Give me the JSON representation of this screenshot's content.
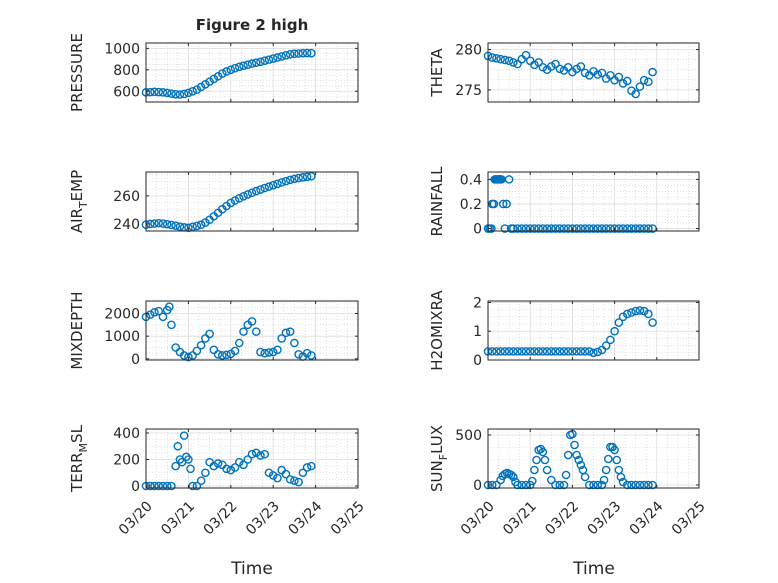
{
  "figure": {
    "title": "Figure 2 high",
    "xlabel": "Time"
  },
  "chart_data": [
    {
      "type": "scatter",
      "id": "pressure",
      "title": "Figure 2 high",
      "ylabel": "PRESSURE",
      "ylabel_sub": "",
      "ylabel_suffix": "",
      "xlim": [
        0,
        5
      ],
      "ylim": [
        500,
        1050
      ],
      "yticks": [
        600,
        800,
        1000
      ],
      "ytick_labels": [
        "600",
        "800",
        "1000"
      ],
      "xticks": [
        0,
        1,
        2,
        3,
        4,
        5
      ],
      "xtick_labels": [],
      "grid": true,
      "x": [
        0,
        0.1,
        0.2,
        0.3,
        0.4,
        0.5,
        0.6,
        0.7,
        0.8,
        0.9,
        1,
        1.1,
        1.2,
        1.3,
        1.4,
        1.5,
        1.6,
        1.7,
        1.8,
        1.9,
        2,
        2.1,
        2.2,
        2.3,
        2.4,
        2.5,
        2.6,
        2.7,
        2.8,
        2.9,
        3,
        3.1,
        3.2,
        3.3,
        3.4,
        3.5,
        3.6,
        3.7,
        3.8,
        3.9
      ],
      "y": [
        590,
        592,
        595,
        593,
        590,
        585,
        578,
        572,
        570,
        575,
        585,
        600,
        615,
        640,
        665,
        690,
        715,
        740,
        765,
        785,
        800,
        815,
        828,
        838,
        848,
        858,
        866,
        875,
        885,
        895,
        905,
        915,
        925,
        935,
        945,
        950,
        952,
        955,
        956,
        955
      ]
    },
    {
      "type": "scatter",
      "id": "theta",
      "title": "",
      "ylabel": "THETA",
      "ylabel_sub": "",
      "ylabel_suffix": "",
      "xlim": [
        0,
        5
      ],
      "ylim": [
        273.5,
        280.8
      ],
      "yticks": [
        275,
        280
      ],
      "ytick_labels": [
        "275",
        "280"
      ],
      "xticks": [
        0,
        1,
        2,
        3,
        4,
        5
      ],
      "xtick_labels": [],
      "grid": true,
      "x": [
        0,
        0.1,
        0.2,
        0.3,
        0.4,
        0.5,
        0.6,
        0.7,
        0.8,
        0.9,
        1,
        1.1,
        1.2,
        1.3,
        1.4,
        1.5,
        1.6,
        1.7,
        1.8,
        1.9,
        2,
        2.1,
        2.2,
        2.3,
        2.4,
        2.5,
        2.6,
        2.7,
        2.8,
        2.9,
        3,
        3.1,
        3.2,
        3.3,
        3.4,
        3.5,
        3.6,
        3.7,
        3.8,
        3.9
      ],
      "y": [
        279.2,
        279,
        278.9,
        278.8,
        278.7,
        278.6,
        278.4,
        278.2,
        278.8,
        279.3,
        278.6,
        278.1,
        278.4,
        277.8,
        277.5,
        277.9,
        278.2,
        277.6,
        277.4,
        277.8,
        277.2,
        277.6,
        277.9,
        277.1,
        276.8,
        277.3,
        276.9,
        277.1,
        276.4,
        276.8,
        276.2,
        276.6,
        275.8,
        276.1,
        274.9,
        274.5,
        275.4,
        276.2,
        276.0,
        277.2
      ]
    },
    {
      "type": "scatter",
      "id": "air-temp",
      "title": "",
      "ylabel": "AIR",
      "ylabel_sub": "T",
      "ylabel_suffix": "EMP",
      "xlim": [
        0,
        5
      ],
      "ylim": [
        235,
        277
      ],
      "yticks": [
        240,
        260
      ],
      "ytick_labels": [
        "240",
        "260"
      ],
      "xticks": [
        0,
        1,
        2,
        3,
        4,
        5
      ],
      "xtick_labels": [],
      "grid": true,
      "x": [
        0,
        0.1,
        0.2,
        0.3,
        0.4,
        0.5,
        0.6,
        0.7,
        0.8,
        0.9,
        1,
        1.1,
        1.2,
        1.3,
        1.4,
        1.5,
        1.6,
        1.7,
        1.8,
        1.9,
        2,
        2.1,
        2.2,
        2.3,
        2.4,
        2.5,
        2.6,
        2.7,
        2.8,
        2.9,
        3,
        3.1,
        3.2,
        3.3,
        3.4,
        3.5,
        3.6,
        3.7,
        3.8,
        3.9
      ],
      "y": [
        239.5,
        240,
        240.3,
        240.6,
        240.3,
        239.8,
        239.3,
        238.8,
        238.1,
        237.6,
        237.3,
        238,
        238.6,
        239.5,
        241,
        243,
        245.5,
        248,
        250.5,
        252.8,
        255,
        256.7,
        258.3,
        259.7,
        261,
        262.2,
        263.4,
        264.5,
        265.6,
        266.6,
        267.6,
        268.6,
        269.6,
        270.5,
        271.4,
        272.1,
        272.7,
        273.2,
        273.6,
        274
      ]
    },
    {
      "type": "scatter",
      "id": "rainfall",
      "title": "",
      "ylabel": "RAINFALL",
      "ylabel_sub": "",
      "ylabel_suffix": "",
      "xlim": [
        0,
        5
      ],
      "ylim": [
        -0.02,
        0.46
      ],
      "yticks": [
        0,
        0.2,
        0.4
      ],
      "ytick_labels": [
        "0",
        "0.2",
        "0.4"
      ],
      "xticks": [
        0,
        1,
        2,
        3,
        4,
        5
      ],
      "xtick_labels": [],
      "grid": true,
      "x": [
        0,
        0.04,
        0.08,
        0.1,
        0.14,
        0.16,
        0.18,
        0.2,
        0.22,
        0.24,
        0.26,
        0.28,
        0.3,
        0.32,
        0.36,
        0.4,
        0.44,
        0.5,
        0.55,
        0.6,
        0.7,
        0.8,
        0.9,
        1,
        1.1,
        1.2,
        1.3,
        1.4,
        1.5,
        1.6,
        1.7,
        1.8,
        1.9,
        2,
        2.1,
        2.2,
        2.3,
        2.4,
        2.5,
        2.6,
        2.7,
        2.8,
        2.9,
        3,
        3.1,
        3.2,
        3.3,
        3.4,
        3.5,
        3.6,
        3.7,
        3.8,
        3.9
      ],
      "y": [
        0,
        0,
        0,
        0.2,
        0.2,
        0.4,
        0.4,
        0.4,
        0.4,
        0.4,
        0.4,
        0.4,
        0.4,
        0.4,
        0.2,
        0,
        0.2,
        0.4,
        0,
        0,
        0,
        0,
        0,
        0,
        0,
        0,
        0,
        0,
        0,
        0,
        0,
        0,
        0,
        0,
        0,
        0,
        0,
        0,
        0,
        0,
        0,
        0,
        0,
        0,
        0,
        0,
        0,
        0,
        0,
        0,
        0,
        0,
        0
      ]
    },
    {
      "type": "scatter",
      "id": "mixdepth",
      "title": "",
      "ylabel": "MIXDEPTH",
      "ylabel_sub": "",
      "ylabel_suffix": "",
      "xlim": [
        0,
        5
      ],
      "ylim": [
        -50,
        2550
      ],
      "yticks": [
        0,
        1000,
        2000
      ],
      "ytick_labels": [
        "0",
        "1000",
        "2000"
      ],
      "xticks": [
        0,
        1,
        2,
        3,
        4,
        5
      ],
      "xtick_labels": [],
      "grid": true,
      "x": [
        0,
        0.1,
        0.2,
        0.3,
        0.4,
        0.5,
        0.55,
        0.6,
        0.7,
        0.8,
        0.9,
        1,
        1.1,
        1.2,
        1.3,
        1.4,
        1.5,
        1.6,
        1.7,
        1.8,
        1.9,
        2,
        2.1,
        2.2,
        2.3,
        2.4,
        2.5,
        2.6,
        2.7,
        2.8,
        2.9,
        3,
        3.1,
        3.2,
        3.3,
        3.4,
        3.5,
        3.6,
        3.7,
        3.8,
        3.9
      ],
      "y": [
        1850,
        1950,
        2050,
        2100,
        1850,
        2150,
        2300,
        1500,
        500,
        300,
        150,
        80,
        150,
        350,
        600,
        900,
        1100,
        400,
        200,
        150,
        180,
        220,
        350,
        700,
        1200,
        1500,
        1650,
        1200,
        300,
        250,
        280,
        300,
        400,
        900,
        1150,
        1200,
        700,
        200,
        100,
        250,
        150
      ]
    },
    {
      "type": "scatter",
      "id": "h2omixra",
      "title": "",
      "ylabel": "H2OMIXRA",
      "ylabel_sub": "",
      "ylabel_suffix": "",
      "xlim": [
        0,
        5
      ],
      "ylim": [
        0,
        2.05
      ],
      "yticks": [
        0,
        1,
        2
      ],
      "ytick_labels": [
        "0",
        "1",
        "2"
      ],
      "xticks": [
        0,
        1,
        2,
        3,
        4,
        5
      ],
      "xtick_labels": [],
      "grid": true,
      "x": [
        0,
        0.1,
        0.2,
        0.3,
        0.4,
        0.5,
        0.6,
        0.7,
        0.8,
        0.9,
        1,
        1.1,
        1.2,
        1.3,
        1.4,
        1.5,
        1.6,
        1.7,
        1.8,
        1.9,
        2,
        2.1,
        2.2,
        2.3,
        2.4,
        2.5,
        2.6,
        2.7,
        2.8,
        2.9,
        3,
        3.1,
        3.2,
        3.3,
        3.4,
        3.5,
        3.6,
        3.7,
        3.8,
        3.9
      ],
      "y": [
        0.3,
        0.3,
        0.3,
        0.3,
        0.3,
        0.3,
        0.3,
        0.3,
        0.3,
        0.3,
        0.3,
        0.3,
        0.3,
        0.3,
        0.3,
        0.3,
        0.3,
        0.3,
        0.3,
        0.3,
        0.3,
        0.3,
        0.3,
        0.3,
        0.3,
        0.25,
        0.28,
        0.35,
        0.5,
        0.7,
        1.0,
        1.3,
        1.5,
        1.6,
        1.65,
        1.7,
        1.72,
        1.7,
        1.6,
        1.3
      ]
    },
    {
      "type": "scatter",
      "id": "terr-msl",
      "title": "",
      "ylabel": "TERR",
      "ylabel_sub": "M",
      "ylabel_suffix": "SL",
      "xlim": [
        0,
        5
      ],
      "ylim": [
        -15,
        430
      ],
      "yticks": [
        0,
        200,
        400
      ],
      "ytick_labels": [
        "0",
        "200",
        "400"
      ],
      "xticks": [
        0,
        1,
        2,
        3,
        4,
        5
      ],
      "xtick_labels": [
        "03/20",
        "03/21",
        "03/22",
        "03/23",
        "03/24",
        "03/25"
      ],
      "grid": true,
      "x": [
        0,
        0.1,
        0.2,
        0.3,
        0.4,
        0.5,
        0.6,
        0.7,
        0.75,
        0.8,
        0.85,
        0.9,
        0.95,
        1,
        1.05,
        1.1,
        1.2,
        1.3,
        1.4,
        1.5,
        1.6,
        1.7,
        1.8,
        1.9,
        2,
        2.1,
        2.2,
        2.3,
        2.4,
        2.5,
        2.6,
        2.7,
        2.8,
        2.9,
        3,
        3.1,
        3.2,
        3.3,
        3.4,
        3.5,
        3.6,
        3.7,
        3.8,
        3.9
      ],
      "y": [
        0,
        0,
        0,
        0,
        0,
        0,
        0,
        150,
        300,
        200,
        180,
        380,
        220,
        200,
        130,
        0,
        0,
        40,
        100,
        180,
        150,
        170,
        160,
        130,
        120,
        140,
        180,
        160,
        200,
        240,
        250,
        230,
        240,
        100,
        80,
        60,
        120,
        90,
        50,
        40,
        30,
        100,
        140,
        150
      ]
    },
    {
      "type": "scatter",
      "id": "sun-flux",
      "title": "",
      "ylabel": "SUN",
      "ylabel_sub": "F",
      "ylabel_suffix": "LUX",
      "xlim": [
        0,
        5
      ],
      "ylim": [
        -30,
        560
      ],
      "yticks": [
        0,
        500
      ],
      "ytick_labels": [
        "0",
        "500"
      ],
      "xticks": [
        0,
        1,
        2,
        3,
        4,
        5
      ],
      "xtick_labels": [
        "03/20",
        "03/21",
        "03/22",
        "03/23",
        "03/24",
        "03/25"
      ],
      "grid": true,
      "x": [
        0,
        0.1,
        0.2,
        0.3,
        0.35,
        0.4,
        0.45,
        0.5,
        0.55,
        0.6,
        0.65,
        0.7,
        0.8,
        0.9,
        1,
        1.05,
        1.1,
        1.15,
        1.2,
        1.25,
        1.3,
        1.35,
        1.4,
        1.5,
        1.6,
        1.7,
        1.8,
        1.85,
        1.9,
        1.95,
        2,
        2.05,
        2.1,
        2.15,
        2.2,
        2.25,
        2.3,
        2.4,
        2.5,
        2.6,
        2.7,
        2.75,
        2.8,
        2.85,
        2.9,
        2.95,
        3,
        3.05,
        3.1,
        3.15,
        3.2,
        3.3,
        3.4,
        3.5,
        3.6,
        3.7,
        3.8,
        3.9
      ],
      "y": [
        0,
        0,
        0,
        50,
        90,
        110,
        120,
        110,
        100,
        80,
        30,
        0,
        0,
        0,
        0,
        40,
        150,
        250,
        350,
        360,
        330,
        250,
        150,
        50,
        0,
        0,
        0,
        100,
        300,
        500,
        510,
        400,
        300,
        250,
        200,
        150,
        80,
        0,
        0,
        0,
        0,
        50,
        150,
        260,
        380,
        380,
        350,
        250,
        150,
        80,
        30,
        0,
        0,
        0,
        0,
        0,
        0,
        0
      ]
    }
  ]
}
